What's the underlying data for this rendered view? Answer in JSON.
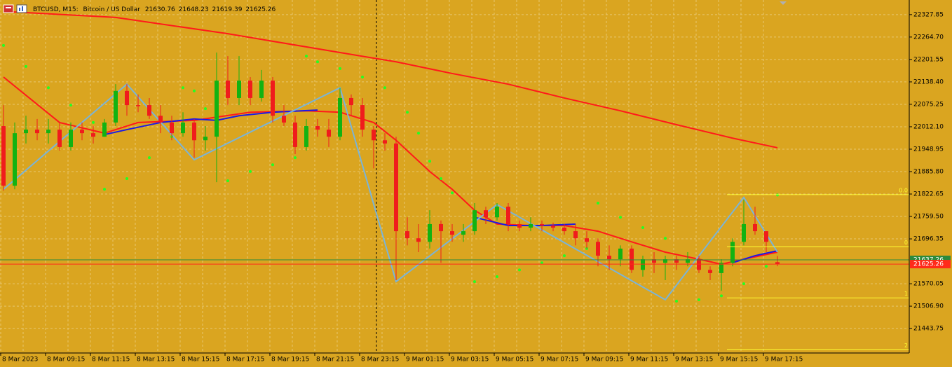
{
  "chart_data": {
    "type": "candlestick",
    "symbol": "BTCUSD, M15:",
    "description": "Bitcoin / US Dollar",
    "categories": [
      "8 Mar 2023",
      null,
      null,
      null,
      "8 Mar 09:15",
      null,
      null,
      null,
      "8 Mar 11:15",
      null,
      null,
      null,
      "8 Mar 13:15",
      null,
      null,
      null,
      "8 Mar 15:15",
      null,
      null,
      null,
      "8 Mar 17:15",
      null,
      null,
      null,
      "8 Mar 19:15",
      null,
      null,
      null,
      "8 Mar 21:15",
      null,
      null,
      null,
      "8 Mar 23:15",
      null,
      null,
      null,
      "9 Mar 01:15",
      null,
      null,
      null,
      "9 Mar 03:15",
      null,
      null,
      null,
      "9 Mar 05:15",
      null,
      null,
      null,
      "9 Mar 07:15",
      null,
      null,
      null,
      "9 Mar 09:15",
      null,
      null,
      null,
      "9 Mar 11:15",
      null,
      null,
      null,
      "9 Mar 13:15",
      null,
      null,
      null,
      "9 Mar 15:15",
      null,
      null,
      null,
      "9 Mar 17:15",
      null
    ],
    "open": [
      22014,
      21846,
      21994,
      22004,
      21994,
      22004,
      21955,
      22004,
      21994,
      21984,
      22024,
      22113,
      22073,
      22073,
      22043,
      22024,
      21994,
      22024,
      21974,
      21984,
      22142,
      22093,
      22142,
      22093,
      22142,
      22043,
      22024,
      21955,
      22014,
      22004,
      21984,
      22093,
      22073,
      22004,
      21974,
      21965,
      21718,
      21698,
      21688,
      21738,
      21718,
      21708,
      21718,
      21777,
      21757,
      21787,
      21738,
      21728,
      21738,
      21734,
      21728,
      21718,
      21698,
      21688,
      21649,
      21639,
      21669,
      21609,
      21639,
      21629,
      21639,
      21629,
      21639,
      21609,
      21600,
      21629,
      21688,
      21738,
      21718,
      21630.76
    ],
    "high": [
      22073,
      22024,
      22043,
      22034,
      22034,
      22024,
      22024,
      22024,
      22014,
      22034,
      22132,
      22132,
      22103,
      22093,
      22073,
      22043,
      22053,
      22034,
      22014,
      22221,
      22211,
      22211,
      22152,
      22172,
      22152,
      22073,
      22043,
      22034,
      22034,
      22034,
      22122,
      22103,
      22093,
      22014,
      21994,
      21984,
      21757,
      21738,
      21777,
      21748,
      21738,
      21738,
      21797,
      21787,
      21797,
      21797,
      21748,
      21757,
      21748,
      21742,
      21738,
      21738,
      21718,
      21698,
      21678,
      21678,
      21678,
      21649,
      21659,
      21649,
      21649,
      21659,
      21649,
      21619,
      21639,
      21698,
      21807,
      21787,
      21718,
      21648.23
    ],
    "low": [
      21832,
      21836,
      21965,
      21974,
      21965,
      21945,
      21945,
      21974,
      21965,
      21984,
      22014,
      22043,
      22053,
      22034,
      21994,
      21974,
      21984,
      21925,
      21945,
      21856,
      22073,
      22073,
      22073,
      22083,
      22024,
      22014,
      21935,
      21945,
      21984,
      21955,
      21974,
      22043,
      21984,
      21895,
      21945,
      21580,
      21678,
      21659,
      21669,
      21629,
      21688,
      21688,
      21708,
      21738,
      21748,
      21718,
      21718,
      21718,
      21718,
      21718,
      21708,
      21678,
      21669,
      21619,
      21609,
      21619,
      21600,
      21590,
      21600,
      21580,
      21609,
      21619,
      21600,
      21580,
      21550,
      21619,
      21678,
      21708,
      21659,
      21619.39
    ],
    "close": [
      21846,
      21994,
      22004,
      21994,
      22004,
      21955,
      22004,
      21994,
      21984,
      22024,
      22113,
      22073,
      22070,
      22043,
      22024,
      21994,
      22024,
      21974,
      21984,
      22142,
      22093,
      22142,
      22093,
      22142,
      22043,
      22024,
      21955,
      22014,
      22004,
      21984,
      22093,
      22073,
      22004,
      21974,
      21965,
      21718,
      21698,
      21688,
      21738,
      21718,
      21708,
      21718,
      21777,
      21757,
      21787,
      21738,
      21728,
      21738,
      21734,
      21728,
      21718,
      21698,
      21688,
      21649,
      21639,
      21669,
      21609,
      21639,
      21629,
      21639,
      21629,
      21639,
      21609,
      21600,
      21629,
      21688,
      21738,
      21718,
      21688,
      21625.26
    ],
    "up_color": "#12b312",
    "down_color": "#f01c1c",
    "bid_color": "#ff2a1a",
    "ask": {
      "value": 21637.26,
      "color": "#2c8a3c"
    },
    "background": "#daa520",
    "ylim": [
      21375,
      22369
    ],
    "yticks": [
      22327.85,
      {
        "value": 22264.7,
        "label": "22264.70"
      },
      22201.55,
      {
        "value": 22138.4,
        "label": "22138.40"
      },
      22075.25,
      {
        "value": 22012.1,
        "label": "22012.10"
      },
      21948.95,
      {
        "value": 21885.8,
        "label": "21885.80"
      },
      21822.65,
      {
        "value": 21759.5,
        "label": "21759.50"
      },
      21696.35,
      21570.05,
      {
        "value": 21506.9,
        "label": "21506.90"
      },
      21443.75
    ],
    "grid": true,
    "overlays": [
      {
        "type": "line",
        "color": "#ff1a1a",
        "x": [
          0,
          10,
          20,
          30,
          35,
          40,
          45,
          50,
          55,
          60,
          65,
          69
        ],
        "values": [
          22337,
          22320,
          22274,
          22221,
          22195,
          22162,
          22132,
          22093,
          22057,
          22018,
          21980,
          21953
        ]
      },
      {
        "type": "line",
        "color": "#ff1a1a",
        "x": [
          0,
          5,
          9,
          12,
          17,
          22,
          27,
          30,
          33,
          35,
          38,
          40,
          42,
          44,
          47,
          50,
          53,
          56,
          59,
          62,
          64,
          66,
          69
        ],
        "values": [
          22152,
          22024,
          21994,
          22024,
          22030,
          22053,
          22057,
          22053,
          22024,
          21974,
          21886,
          21836,
          21777,
          21738,
          21734,
          21734,
          21718,
          21688,
          21659,
          21639,
          21625,
          21639,
          21659
        ]
      },
      {
        "type": "line",
        "color": "#1a1ae6",
        "x": [
          9,
          11,
          14,
          17,
          19,
          21,
          24,
          28,
          35,
          42,
          45,
          48,
          51,
          60,
          65,
          67,
          69
        ],
        "values": [
          21990,
          22004,
          22024,
          22034,
          22030,
          22043,
          22053,
          22059,
          null,
          21757,
          21734,
          21734,
          21738,
          null,
          21629,
          21649,
          21663
        ]
      },
      {
        "type": "line",
        "color": "#7ab4d8",
        "x": [
          0,
          11,
          17,
          30,
          35,
          44,
          59,
          66,
          69
        ],
        "values": [
          21836,
          22132,
          21919,
          22122,
          21576,
          21793,
          21525,
          21813,
          21659
        ]
      },
      {
        "type": "dots",
        "color": "#22ff22",
        "x": [
          0,
          2,
          4,
          6,
          8,
          9,
          11,
          13,
          15,
          16,
          17,
          18,
          19,
          20,
          22,
          24,
          26,
          27,
          28,
          30,
          32,
          34,
          36,
          37,
          38,
          39,
          40,
          42,
          44,
          46,
          48,
          50,
          52,
          53,
          55,
          57,
          59,
          60,
          62,
          64,
          66,
          68,
          69
        ],
        "values": [
          22241,
          22182,
          22122,
          22073,
          22024,
          21836,
          21866,
          21925,
          21984,
          22122,
          22113,
          22063,
          21994,
          21860,
          21886,
          21905,
          21925,
          22211,
          22195,
          22176,
          22152,
          22122,
          22053,
          21994,
          21915,
          21866,
          21826,
          21576,
          21590,
          21609,
          21629,
          21649,
          21669,
          21797,
          21757,
          21728,
          21698,
          21521,
          21525,
          21536,
          21570,
          21619,
          21820
        ]
      }
    ],
    "level_color": "#ffff33",
    "levels": [
      {
        "label": "0.0",
        "value": 21821
      },
      {
        "label": "0",
        "value": 21674
      },
      {
        "label": "1",
        "value": 21530
      },
      {
        "label": "2",
        "value": 21384
      }
    ]
  }
}
